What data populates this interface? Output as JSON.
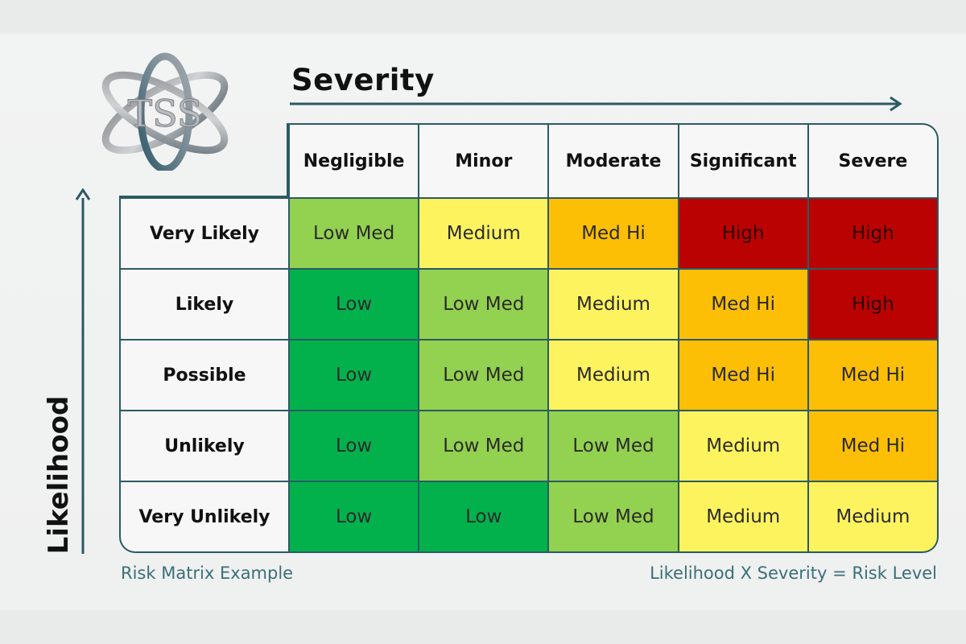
{
  "logo": {
    "text": "TSS",
    "name": "tss-atom-logo"
  },
  "axes": {
    "severity_label": "Severity",
    "likelihood_label": "Likelihood"
  },
  "severity_levels": [
    "Negligible",
    "Minor",
    "Moderate",
    "Significant",
    "Severe"
  ],
  "likelihood_levels": [
    "Very Likely",
    "Likely",
    "Possible",
    "Unlikely",
    "Very Unlikely"
  ],
  "matrix": [
    [
      "Low Med",
      "Medium",
      "Med Hi",
      "High",
      "High"
    ],
    [
      "Low",
      "Low Med",
      "Medium",
      "Med Hi",
      "High"
    ],
    [
      "Low",
      "Low Med",
      "Medium",
      "Med Hi",
      "Med Hi"
    ],
    [
      "Low",
      "Low Med",
      "Low Med",
      "Medium",
      "Med Hi"
    ],
    [
      "Low",
      "Low",
      "Low Med",
      "Medium",
      "Medium"
    ]
  ],
  "risk_colors": {
    "Low": "#03b14c",
    "Low Med": "#93d150",
    "Medium": "#fdf35f",
    "Med Hi": "#fdbf06",
    "High": "#bb0202"
  },
  "captions": {
    "left": "Risk Matrix Example",
    "right": "Likelihood X Severity = Risk Level"
  }
}
